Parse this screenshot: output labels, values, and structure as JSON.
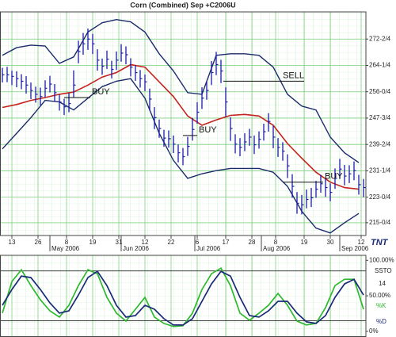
{
  "chart_data": [
    {
      "type": "ohlc",
      "title": "Corn (Combined) Sep +C2006U",
      "logo": "TNT",
      "color": "#1c1ca8",
      "xlim": [
        0,
        154
      ],
      "ylim": [
        211,
        281
      ],
      "yticks": [
        {
          "value": 272.5,
          "label": "272-2/4"
        },
        {
          "value": 264.25,
          "label": "264-1/4"
        },
        {
          "value": 256,
          "label": "256-0/4"
        },
        {
          "value": 247.75,
          "label": "247-3/4"
        },
        {
          "value": 239.5,
          "label": "239-2/4"
        },
        {
          "value": 231.25,
          "label": "231-1/4"
        },
        {
          "value": 223,
          "label": "223-0/4"
        },
        {
          "value": 215,
          "label": "215-0/4"
        }
      ],
      "xticks": [
        {
          "value": 5,
          "label": "13"
        },
        {
          "value": 16,
          "label": "26"
        },
        {
          "value": 28,
          "label": "8"
        },
        {
          "value": 39,
          "label": "19"
        },
        {
          "value": 50,
          "label": "31"
        },
        {
          "value": 61,
          "label": "12"
        },
        {
          "value": 72,
          "label": "22"
        },
        {
          "value": 83,
          "label": "6"
        },
        {
          "value": 95,
          "label": "17"
        },
        {
          "value": 106,
          "label": "28"
        },
        {
          "value": 116,
          "label": "8"
        },
        {
          "value": 128,
          "label": "19"
        },
        {
          "value": 139,
          "label": "30"
        },
        {
          "value": 152,
          "label": "12"
        }
      ],
      "month_ticks": [
        {
          "value": 21,
          "label": "May 2006"
        },
        {
          "value": 51,
          "label": "Jun 2006"
        },
        {
          "value": 82,
          "label": "Jul 2006"
        },
        {
          "value": 110,
          "label": "Aug 2006"
        },
        {
          "value": 143,
          "label": "Sep 2006"
        }
      ],
      "x": [
        1,
        3,
        5,
        7,
        9,
        11,
        13,
        15,
        17,
        19,
        21,
        23,
        25,
        27,
        29,
        31,
        33,
        35,
        37,
        39,
        41,
        43,
        45,
        47,
        49,
        51,
        53,
        55,
        57,
        59,
        61,
        63,
        65,
        67,
        69,
        71,
        73,
        75,
        77,
        79,
        81,
        83,
        85,
        87,
        89,
        91,
        93,
        95,
        97,
        99,
        101,
        103,
        105,
        107,
        109,
        111,
        113,
        115,
        117,
        119,
        121,
        123,
        125,
        127,
        129,
        131,
        133,
        135,
        137,
        139,
        141,
        143,
        145,
        147,
        149,
        151,
        153
      ],
      "high": [
        263.5,
        263.8,
        262.6,
        262.4,
        261.5,
        260.9,
        258.9,
        257.6,
        257.3,
        259.6,
        261.0,
        258.4,
        255.1,
        253.8,
        255.6,
        262.7,
        272.0,
        274.4,
        275.8,
        274.1,
        269.3,
        266.4,
        268.9,
        265.7,
        268.6,
        270.9,
        270.2,
        266.5,
        264.3,
        262.8,
        261.4,
        257.0,
        251.2,
        247.3,
        244.1,
        243.9,
        242.3,
        239.5,
        238.4,
        241.9,
        247.8,
        252.7,
        257.4,
        259.2,
        265.6,
        268.5,
        266.0,
        257.4,
        248.0,
        242.7,
        241.5,
        243.0,
        244.4,
        242.3,
        243.6,
        246.0,
        249.3,
        245.4,
        241.5,
        240.2,
        236.4,
        230.2,
        224.6,
        223.7,
        225.4,
        225.9,
        228.1,
        230.0,
        228.8,
        227.3,
        232.0,
        235.0,
        233.1,
        233.0,
        234.2,
        230.0,
        228.7
      ],
      "low": [
        258.9,
        259.0,
        258.1,
        257.4,
        256.8,
        255.4,
        253.7,
        252.6,
        251.8,
        254.3,
        255.8,
        253.0,
        250.1,
        248.7,
        249.6,
        254.3,
        264.9,
        267.6,
        269.1,
        267.8,
        262.6,
        261.3,
        263.1,
        260.2,
        262.8,
        265.4,
        264.6,
        260.8,
        259.4,
        257.3,
        256.2,
        250.1,
        244.3,
        241.6,
        238.8,
        238.5,
        236.8,
        233.9,
        233.0,
        235.9,
        240.7,
        246.0,
        250.6,
        253.5,
        258.1,
        261.2,
        258.7,
        248.2,
        240.6,
        236.7,
        235.8,
        237.4,
        239.1,
        236.5,
        238.2,
        240.7,
        243.5,
        238.3,
        235.6,
        234.4,
        229.0,
        222.8,
        217.8,
        217.6,
        219.5,
        219.9,
        222.8,
        224.4,
        223.1,
        221.7,
        225.6,
        228.7,
        226.7,
        227.4,
        228.3,
        223.8,
        223.0
      ],
      "close": [
        261.3,
        261.3,
        260.8,
        260.1,
        259.3,
        258.1,
        256.4,
        255.2,
        254.5,
        257.1,
        258.4,
        255.7,
        252.8,
        251.3,
        252.3,
        258.1,
        268.6,
        271.0,
        272.5,
        271.0,
        265.9,
        264.0,
        266.2,
        263.0,
        265.9,
        268.1,
        267.6,
        263.7,
        262.0,
        260.1,
        259.1,
        253.7,
        247.9,
        244.5,
        241.5,
        241.3,
        239.6,
        236.9,
        235.7,
        238.9,
        244.2,
        249.6,
        254.0,
        256.4,
        262.0,
        264.5,
        262.5,
        252.8,
        244.5,
        239.6,
        238.6,
        240.3,
        241.8,
        239.4,
        241.1,
        243.5,
        246.7,
        241.8,
        238.6,
        237.4,
        232.8,
        226.4,
        221.1,
        220.6,
        222.3,
        222.8,
        225.5,
        227.2,
        226.0,
        224.5,
        228.9,
        231.8,
        229.6,
        230.3,
        231.3,
        226.9,
        226.0
      ],
      "bands": {
        "x": [
          1,
          7,
          13,
          19,
          25,
          31,
          37,
          43,
          49,
          55,
          61,
          67,
          73,
          79,
          85,
          91,
          97,
          103,
          109,
          115,
          121,
          127,
          133,
          139,
          145,
          151
        ],
        "band_color": "#1b2a6b",
        "middle_color": "#c4231e",
        "upper": [
          267.4,
          269.8,
          270.6,
          270.3,
          264.9,
          266.9,
          274.7,
          277.6,
          278.6,
          277.9,
          274.7,
          267.9,
          262.5,
          255.7,
          255.2,
          267.4,
          267.9,
          267.9,
          267.4,
          263.7,
          255.2,
          251.5,
          250.3,
          241.8,
          236.9,
          233.8
        ],
        "middle": [
          251.1,
          252.0,
          253.3,
          254.2,
          255.2,
          255.9,
          258.1,
          260.6,
          262.0,
          264.5,
          263.7,
          259.1,
          254.5,
          248.4,
          245.5,
          247.2,
          248.6,
          248.9,
          248.4,
          245.5,
          239.8,
          235.2,
          230.8,
          227.7,
          226.0,
          225.5
        ],
        "lower": [
          238.1,
          243.0,
          247.9,
          253.3,
          252.8,
          250.3,
          254.0,
          257.6,
          259.3,
          260.1,
          254.0,
          243.0,
          234.5,
          228.9,
          230.3,
          231.3,
          232.0,
          232.0,
          232.0,
          230.8,
          226.4,
          218.6,
          213.3,
          211.8,
          215.0,
          217.9
        ]
      },
      "annotations": [
        {
          "text": "BUY",
          "x": [
            27,
            38
          ],
          "y": 254.2
        },
        {
          "text": "SELL",
          "x": [
            94,
            128
          ],
          "y": 259.3
        },
        {
          "text": "BUY",
          "x": [
            77,
            83
          ],
          "y": 242.3
        },
        {
          "text": "BUY",
          "x": [
            119,
            136
          ],
          "y": 227.7
        }
      ]
    },
    {
      "type": "line",
      "title": "SSTO",
      "period": 14,
      "xlim": [
        0,
        154
      ],
      "ylim": [
        -8,
        107
      ],
      "yticks": [
        {
          "value": 100,
          "label": "100.00%"
        },
        {
          "value": 50,
          "label": "50.00%"
        },
        {
          "value": 0,
          "label": "0%"
        }
      ],
      "levels": [
        85,
        15
      ],
      "x": [
        1,
        5,
        9,
        13,
        17,
        21,
        25,
        29,
        33,
        37,
        41,
        45,
        49,
        53,
        57,
        61,
        65,
        69,
        73,
        77,
        81,
        85,
        89,
        93,
        97,
        101,
        105,
        109,
        113,
        117,
        121,
        125,
        129,
        133,
        137,
        141,
        145,
        149,
        153
      ],
      "series": [
        {
          "name": "%K",
          "color": "#2eb82e",
          "values": [
            25.6,
            70.0,
            86.7,
            64.4,
            44.4,
            28.9,
            20.0,
            36.7,
            64.4,
            86.7,
            81.1,
            47.8,
            25.6,
            14.4,
            31.1,
            47.8,
            20.0,
            11.1,
            6.7,
            7.8,
            25.6,
            58.9,
            81.1,
            88.9,
            64.4,
            25.6,
            15.6,
            25.6,
            36.7,
            53.3,
            36.7,
            14.4,
            8.9,
            11.1,
            33.3,
            64.4,
            73.3,
            73.3,
            31.1
          ]
        },
        {
          "name": "%D",
          "color": "#1b2a78",
          "values": [
            36.7,
            58.9,
            77.8,
            75.6,
            58.9,
            40.0,
            25.6,
            28.9,
            51.1,
            75.6,
            84.4,
            64.4,
            36.7,
            20.0,
            22.2,
            36.7,
            31.1,
            17.8,
            8.9,
            8.9,
            17.8,
            42.2,
            66.7,
            84.4,
            77.8,
            47.8,
            22.2,
            20.0,
            28.9,
            42.2,
            42.2,
            25.6,
            13.3,
            11.1,
            22.2,
            47.8,
            66.7,
            73.3,
            51.1
          ]
        }
      ]
    }
  ]
}
